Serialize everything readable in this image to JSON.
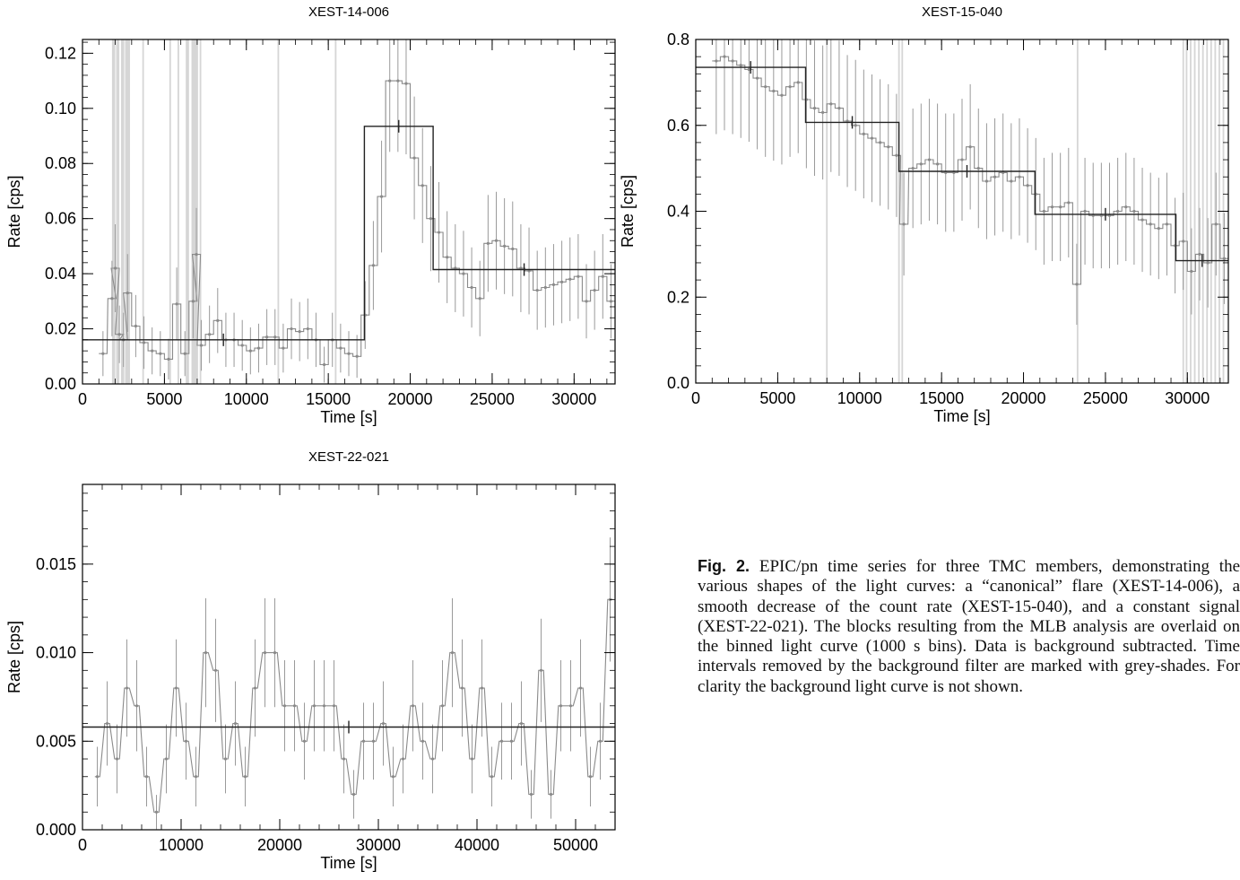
{
  "chart_data": [
    {
      "type": "line",
      "title": "XEST-14-006",
      "xlabel": "Time [s]",
      "ylabel": "Rate [cps]",
      "xlim": [
        0,
        32500
      ],
      "ylim": [
        0,
        0.125
      ],
      "xticks": [
        0,
        5000,
        10000,
        15000,
        20000,
        25000,
        30000
      ],
      "xtick_labels": [
        "0",
        "5000",
        "10000",
        "15000",
        "20000",
        "25000",
        "30000"
      ],
      "yticks": [
        0.0,
        0.02,
        0.04,
        0.06,
        0.08,
        0.1,
        0.12
      ],
      "ytick_labels": [
        "0.00",
        "0.02",
        "0.04",
        "0.06",
        "0.08",
        "0.10",
        "0.12"
      ],
      "grid": false,
      "series": [
        {
          "values_label": "binned light curve (1000 s bins)",
          "x": [
            1250,
            1800,
            2000,
            2250,
            2500,
            2750,
            3250,
            3750,
            4250,
            4750,
            5250,
            5750,
            6250,
            6750,
            6950,
            7250,
            7750,
            8250,
            8750,
            9250,
            9750,
            10250,
            10750,
            11250,
            11750,
            12250,
            12750,
            13250,
            13750,
            14250,
            14750,
            15250,
            15750,
            16250,
            16750,
            17250,
            17750,
            18250,
            18750,
            19250,
            19750,
            20250,
            20750,
            21250,
            21750,
            22250,
            22750,
            23250,
            23750,
            24250,
            24750,
            25250,
            25750,
            26250,
            26750,
            27250,
            27750,
            28250,
            28750,
            29250,
            29750,
            30250,
            30750,
            31250,
            31750,
            32250
          ],
          "y": [
            0.011,
            0.031,
            0.042,
            0.018,
            0.016,
            0.033,
            0.021,
            0.015,
            0.012,
            0.011,
            0.009,
            0.029,
            0.011,
            0.03,
            0.047,
            0.014,
            0.018,
            0.023,
            0.016,
            0.016,
            0.014,
            0.012,
            0.013,
            0.017,
            0.017,
            0.013,
            0.02,
            0.019,
            0.02,
            0.016,
            0.007,
            0.016,
            0.013,
            0.011,
            0.01,
            0.025,
            0.043,
            0.068,
            0.11,
            0.11,
            0.109,
            0.082,
            0.072,
            0.06,
            0.055,
            0.046,
            0.042,
            0.04,
            0.035,
            0.031,
            0.051,
            0.052,
            0.05,
            0.049,
            0.042,
            0.041,
            0.034,
            0.035,
            0.036,
            0.037,
            0.038,
            0.039,
            0.03,
            0.034,
            0.039,
            0.03
          ]
        },
        {
          "values_label": "MLB blocks",
          "blocks": [
            [
              0,
              17200,
              0.016
            ],
            [
              17200,
              21400,
              0.0935
            ],
            [
              21400,
              32500,
              0.0415
            ]
          ]
        }
      ],
      "grey_shades": [
        [
          1800,
          2000
        ],
        [
          2050,
          2250
        ],
        [
          2350,
          2550
        ],
        [
          2600,
          2900
        ],
        [
          3650,
          3750
        ],
        [
          5300,
          5400
        ],
        [
          5800,
          5900
        ],
        [
          6300,
          6500
        ],
        [
          6650,
          7050
        ],
        [
          7150,
          7250
        ],
        [
          11900,
          12000
        ],
        [
          15400,
          15500
        ]
      ]
    },
    {
      "type": "line",
      "title": "XEST-15-040",
      "xlabel": "Time [s]",
      "ylabel": "Rate [cps]",
      "xlim": [
        0,
        32500
      ],
      "ylim": [
        0,
        0.8
      ],
      "xticks": [
        0,
        5000,
        10000,
        15000,
        20000,
        25000,
        30000
      ],
      "xtick_labels": [
        "0",
        "5000",
        "10000",
        "15000",
        "20000",
        "25000",
        "30000"
      ],
      "yticks": [
        0.0,
        0.2,
        0.4,
        0.6,
        0.8
      ],
      "ytick_labels": [
        "0.0",
        "0.2",
        "0.4",
        "0.6",
        "0.8"
      ],
      "grid": false,
      "series": [
        {
          "values_label": "binned light curve (1000 s bins)",
          "x": [
            1250,
            1750,
            2250,
            2750,
            3250,
            3750,
            4250,
            4750,
            5250,
            5750,
            6250,
            6750,
            7250,
            7750,
            8250,
            8750,
            9250,
            9750,
            10250,
            10750,
            11250,
            11750,
            12250,
            12700,
            13250,
            13750,
            14250,
            14750,
            15250,
            15750,
            16250,
            16750,
            17250,
            17750,
            18250,
            18750,
            19250,
            19750,
            20250,
            20750,
            21250,
            21750,
            22250,
            22750,
            23250,
            23750,
            24250,
            24750,
            25250,
            25750,
            26250,
            26750,
            27250,
            27750,
            28250,
            28750,
            29250,
            29750,
            30250,
            30750,
            31250,
            31750,
            32250
          ],
          "y": [
            0.75,
            0.76,
            0.75,
            0.74,
            0.73,
            0.71,
            0.69,
            0.68,
            0.67,
            0.69,
            0.7,
            0.66,
            0.64,
            0.63,
            0.65,
            0.64,
            0.61,
            0.6,
            0.58,
            0.57,
            0.56,
            0.55,
            0.53,
            0.37,
            0.5,
            0.51,
            0.52,
            0.51,
            0.49,
            0.49,
            0.52,
            0.55,
            0.5,
            0.47,
            0.48,
            0.49,
            0.47,
            0.48,
            0.46,
            0.44,
            0.4,
            0.41,
            0.41,
            0.42,
            0.23,
            0.4,
            0.39,
            0.39,
            0.39,
            0.4,
            0.41,
            0.4,
            0.38,
            0.37,
            0.36,
            0.37,
            0.32,
            0.33,
            0.26,
            0.3,
            0.28,
            0.37,
            0.29
          ]
        },
        {
          "values_label": "MLB blocks",
          "blocks": [
            [
              0,
              6700,
              0.735
            ],
            [
              6700,
              12400,
              0.607
            ],
            [
              12400,
              20700,
              0.493
            ],
            [
              20700,
              29300,
              0.393
            ],
            [
              29300,
              32500,
              0.285
            ]
          ]
        }
      ],
      "grey_shades": [
        [
          7950,
          8050
        ],
        [
          12350,
          12450
        ],
        [
          12550,
          12650
        ],
        [
          23250,
          23350
        ],
        [
          29700,
          29800
        ],
        [
          29900,
          30000
        ],
        [
          30150,
          30250
        ],
        [
          30400,
          30500
        ],
        [
          30650,
          30750
        ],
        [
          30900,
          31000
        ],
        [
          31150,
          31250
        ],
        [
          31400,
          31500
        ],
        [
          31650,
          31750
        ],
        [
          31900,
          32000
        ],
        [
          32150,
          32250
        ]
      ]
    },
    {
      "type": "line",
      "title": "XEST-22-021",
      "xlabel": "Time [s]",
      "ylabel": "Rate [cps]",
      "xlim": [
        0,
        54000
      ],
      "ylim": [
        0,
        0.0195
      ],
      "xticks": [
        0,
        10000,
        20000,
        30000,
        40000,
        50000
      ],
      "xtick_labels": [
        "0",
        "10000",
        "20000",
        "30000",
        "40000",
        "50000"
      ],
      "yticks": [
        0.0,
        0.005,
        0.01,
        0.015
      ],
      "ytick_labels": [
        "0.000",
        "0.005",
        "0.010",
        "0.015"
      ],
      "grid": false,
      "series": [
        {
          "values_label": "binned light curve (1000 s bins)",
          "x": [
            1500,
            2500,
            3500,
            4500,
            5500,
            6500,
            7500,
            8500,
            9500,
            10500,
            11500,
            12500,
            13500,
            14500,
            15500,
            16500,
            17500,
            18500,
            19500,
            20500,
            21500,
            22500,
            23500,
            24500,
            25500,
            26500,
            27500,
            28500,
            29500,
            30500,
            31500,
            32500,
            33500,
            34500,
            35500,
            36500,
            37500,
            38500,
            39500,
            40500,
            41500,
            42500,
            43500,
            44500,
            45500,
            46500,
            47500,
            48500,
            49500,
            50500,
            51500,
            52500,
            53500
          ],
          "y": [
            0.003,
            0.006,
            0.004,
            0.008,
            0.007,
            0.003,
            0.001,
            0.004,
            0.008,
            0.005,
            0.003,
            0.01,
            0.009,
            0.004,
            0.006,
            0.003,
            0.008,
            0.01,
            0.01,
            0.007,
            0.007,
            0.005,
            0.007,
            0.007,
            0.007,
            0.004,
            0.002,
            0.005,
            0.005,
            0.006,
            0.003,
            0.004,
            0.007,
            0.005,
            0.004,
            0.007,
            0.01,
            0.008,
            0.004,
            0.008,
            0.003,
            0.005,
            0.005,
            0.006,
            0.002,
            0.009,
            0.002,
            0.007,
            0.007,
            0.008,
            0.003,
            0.005,
            0.013
          ]
        },
        {
          "values_label": "MLB blocks",
          "blocks": [
            [
              0,
              54000,
              0.0058
            ]
          ]
        }
      ],
      "grey_shades": []
    }
  ],
  "caption": {
    "label": "Fig. 2.",
    "text": "EPIC/pn time series for three TMC members, demonstrating the various shapes of the light curves: a “canonical” flare (XEST-14-006), a smooth decrease of the count rate (XEST-15-040), and a constant signal (XEST-22-021). The blocks resulting from the MLB analysis are overlaid on the binned light curve (1000 s bins). Data is background subtracted. Time intervals removed by the background filter are marked with grey-shades. For clarity the background light curve is not shown."
  }
}
